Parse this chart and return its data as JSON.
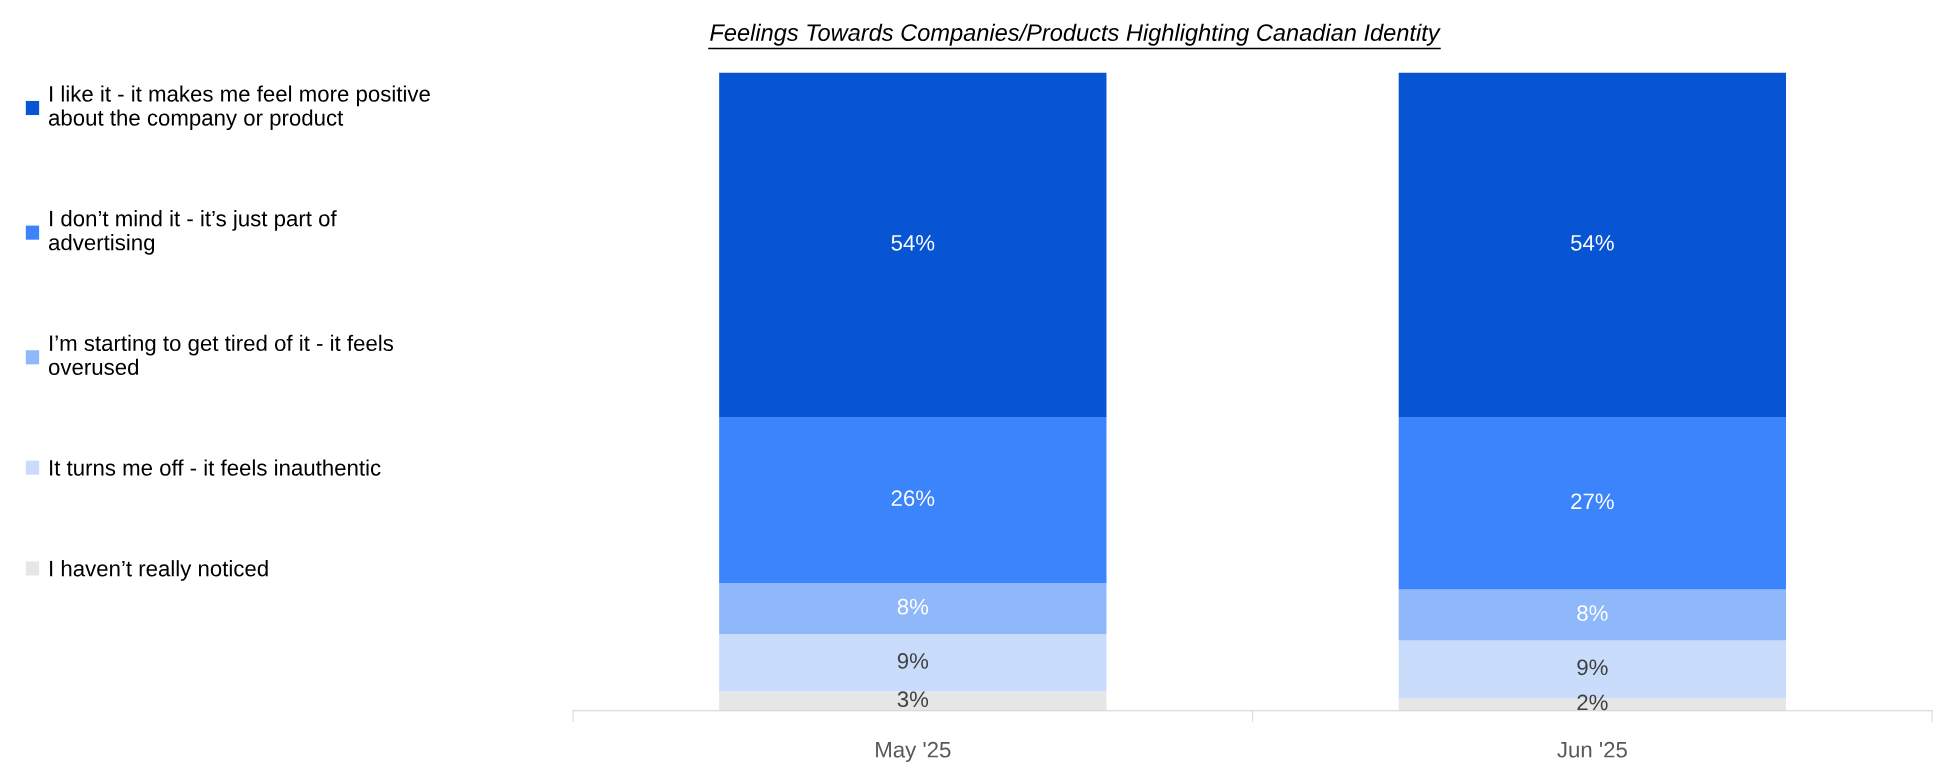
{
  "chart_data": {
    "type": "bar",
    "stacked": true,
    "title": "Feelings Towards Companies/Products Highlighting Canadian Identity",
    "categories": [
      "May '25",
      "Jun '25"
    ],
    "series": [
      {
        "name": "I haven’t really noticed",
        "color": "#e6e6e6",
        "values": [
          3,
          2
        ],
        "value_labels": [
          "3%",
          "2%"
        ]
      },
      {
        "name": "It turns me off - it feels inauthentic",
        "color": "#cadcfb",
        "values": [
          9,
          9
        ],
        "value_labels": [
          "9%",
          "9%"
        ]
      },
      {
        "name": "I’m starting to get tired of it - it feels overused",
        "color": "#8fb8fb",
        "values": [
          8,
          8
        ],
        "value_labels": [
          "8%",
          "8%"
        ]
      },
      {
        "name": "I don’t mind it - it’s just part of advertising",
        "color": "#3b84fb",
        "values": [
          26,
          27
        ],
        "value_labels": [
          "26%",
          "27%"
        ]
      },
      {
        "name": "I like it - it makes me feel more positive about the company or product",
        "color": "#0855d4",
        "values": [
          54,
          54
        ],
        "value_labels": [
          "54%",
          "54%"
        ]
      }
    ],
    "relative": false,
    "legend": "left",
    "grid": false
  }
}
